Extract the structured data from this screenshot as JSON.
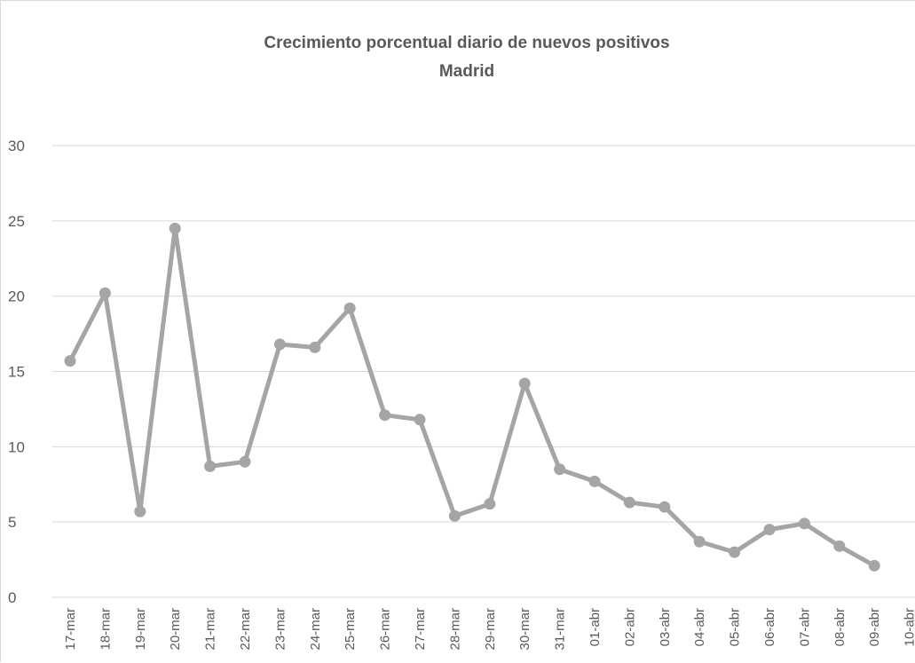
{
  "chart_data": {
    "type": "line",
    "title": "Crecimiento porcentual diario de nuevos positivos",
    "subtitle": "Madrid",
    "xlabel": "",
    "ylabel": "",
    "categories": [
      "17-mar",
      "18-mar",
      "19-mar",
      "20-mar",
      "21-mar",
      "22-mar",
      "23-mar",
      "24-mar",
      "25-mar",
      "26-mar",
      "27-mar",
      "28-mar",
      "29-mar",
      "30-mar",
      "31-mar",
      "01-abr",
      "02-abr",
      "03-abr",
      "04-abr",
      "05-abr",
      "06-abr",
      "07-abr",
      "08-abr",
      "09-abr",
      "10-abr"
    ],
    "series": [
      {
        "values": [
          15.7,
          20.2,
          5.7,
          24.5,
          8.7,
          9.0,
          16.8,
          16.6,
          19.2,
          12.1,
          11.8,
          5.4,
          6.2,
          14.2,
          8.5,
          7.7,
          6.3,
          6.0,
          3.7,
          3.0,
          4.5,
          4.9,
          3.4,
          2.1,
          null
        ],
        "color": "#a5a5a5"
      }
    ],
    "ylim": [
      0,
      30
    ],
    "yticks": [
      0,
      5,
      10,
      15,
      20,
      25,
      30
    ],
    "grid": true,
    "legend": "none"
  }
}
